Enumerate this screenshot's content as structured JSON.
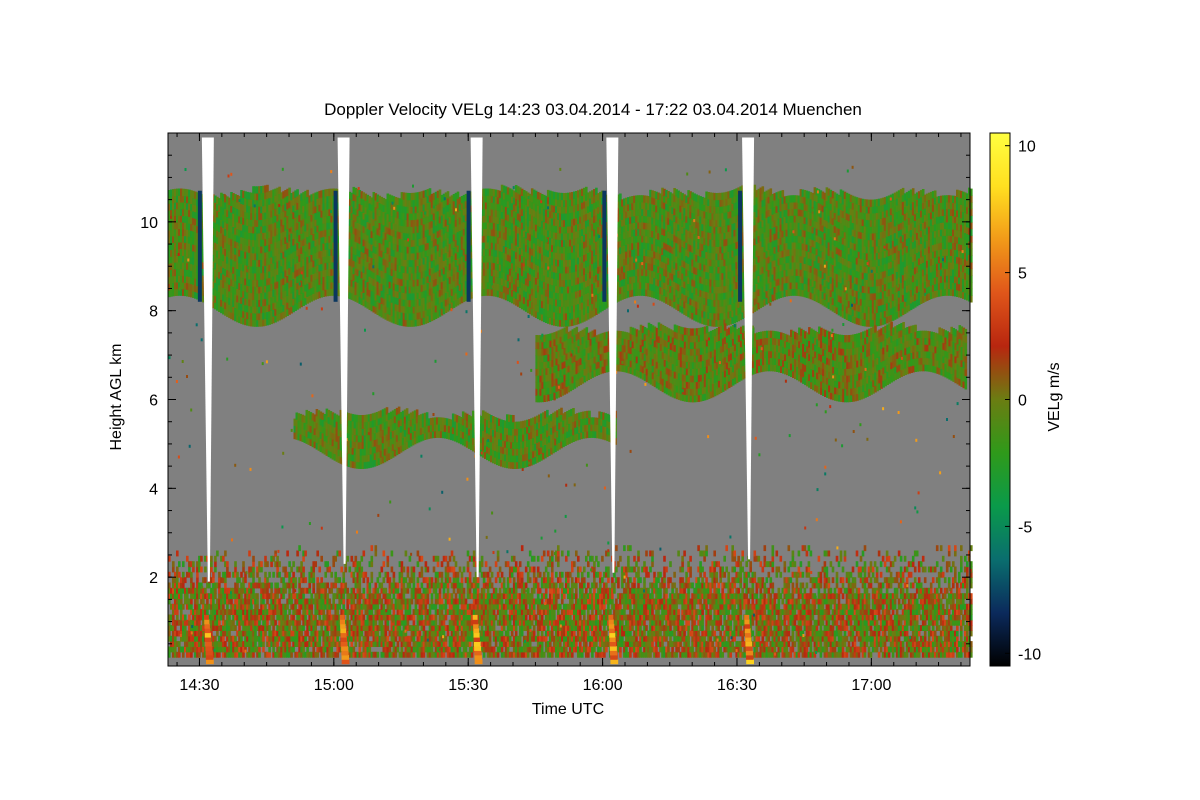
{
  "chart_data": {
    "type": "heatmap",
    "title": "Doppler Velocity VELg   14:23 03.04.2014 - 17:22 03.04.2014 Muenchen",
    "xlabel": "Time UTC",
    "ylabel": "Height AGL km",
    "colorbar_label": "VELg m/s",
    "xlim": [
      14.383,
      17.367
    ],
    "ylim": [
      0,
      12
    ],
    "x_ticks": [
      {
        "value": 14.5,
        "label": "14:30"
      },
      {
        "value": 15.0,
        "label": "15:00"
      },
      {
        "value": 15.5,
        "label": "15:30"
      },
      {
        "value": 16.0,
        "label": "16:00"
      },
      {
        "value": 16.5,
        "label": "16:30"
      },
      {
        "value": 17.0,
        "label": "17:00"
      }
    ],
    "y_ticks": [
      {
        "value": 2,
        "label": "2"
      },
      {
        "value": 4,
        "label": "4"
      },
      {
        "value": 6,
        "label": "6"
      },
      {
        "value": 8,
        "label": "8"
      },
      {
        "value": 10,
        "label": "10"
      }
    ],
    "colorbar": {
      "range": [
        -10.5,
        10.5
      ],
      "ticks": [
        {
          "value": 10,
          "label": "10"
        },
        {
          "value": 5,
          "label": "5"
        },
        {
          "value": 0,
          "label": "0"
        },
        {
          "value": -5,
          "label": "-5"
        },
        {
          "value": -10,
          "label": "-10"
        }
      ],
      "colors": [
        "#000000",
        "#0b2a5c",
        "#0a6e6e",
        "#0a9a4a",
        "#2f9a1a",
        "#6b7d12",
        "#b8260f",
        "#e0561a",
        "#f29a19",
        "#ffe020",
        "#ffff40"
      ]
    },
    "background_color": "#808080",
    "scan_gaps": [
      {
        "time": 14.535,
        "top_km": 11.9,
        "bottom_km": 1.9
      },
      {
        "time": 15.04,
        "top_km": 11.9,
        "bottom_km": 2.3
      },
      {
        "time": 15.535,
        "top_km": 11.9,
        "bottom_km": 2.0
      },
      {
        "time": 16.04,
        "top_km": 11.9,
        "bottom_km": 2.1
      },
      {
        "time": 16.545,
        "top_km": 11.9,
        "bottom_km": 2.4
      }
    ],
    "layers": [
      {
        "name": "upper cloud",
        "t0": 14.383,
        "t1": 17.367,
        "base_km": 8.0,
        "top_km": 10.6,
        "mean_velocity": -1.0
      },
      {
        "name": "mid cloud",
        "t0": 15.75,
        "t1": 17.35,
        "base_km": 6.3,
        "top_km": 7.5,
        "mean_velocity": -0.5
      },
      {
        "name": "lower cloud",
        "t0": 14.85,
        "t1": 16.05,
        "base_km": 4.8,
        "top_km": 5.6,
        "mean_velocity": -1.0
      },
      {
        "name": "boundary layer",
        "t0": 14.383,
        "t1": 17.367,
        "base_km": 0.2,
        "top_km": 2.6,
        "mean_velocity": 0.5
      }
    ]
  }
}
